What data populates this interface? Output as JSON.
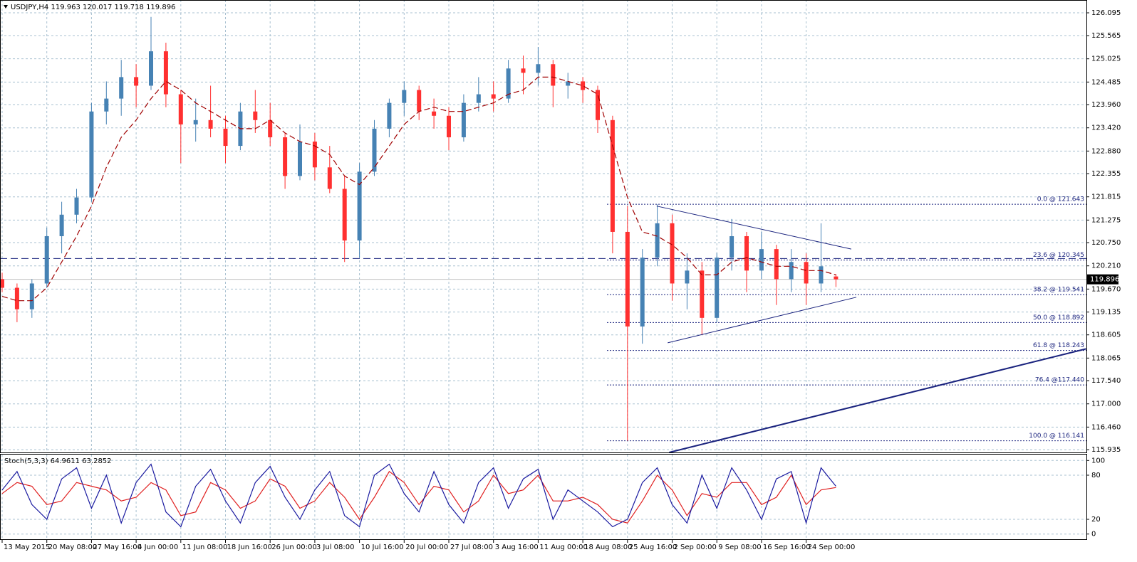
{
  "chart_data": {
    "type": "candlestick",
    "title": "USDJPY,H4  119.963 120.017 119.718 119.896",
    "categories": [
      "13 May 2015",
      null,
      null,
      "20 May 08:00",
      null,
      null,
      "27 May 16:00",
      null,
      null,
      "4 Jun 00:00",
      null,
      null,
      "11 Jun 08:00",
      null,
      null,
      "18 Jun 16:00",
      null,
      null,
      "26 Jun 00:00",
      null,
      null,
      "3 Jul 08:00",
      null,
      null,
      "10 Jul 16:00",
      null,
      null,
      "20 Jul 00:00",
      null,
      null,
      "27 Jul 08:00",
      null,
      null,
      "3 Aug 16:00",
      null,
      null,
      "11 Aug 00:00",
      null,
      null,
      "18 Aug 08:00",
      null,
      null,
      "25 Aug 16:00",
      null,
      null,
      "2 Sep 00:00",
      null,
      null,
      "9 Sep 08:00",
      null,
      null,
      "16 Sep 16:00",
      null,
      null,
      "24 Sep 00:00",
      null,
      null
    ],
    "ohlc": [
      [
        119.9,
        120.05,
        119.6,
        119.7
      ],
      [
        119.7,
        119.8,
        118.9,
        119.2
      ],
      [
        119.2,
        119.9,
        119.0,
        119.8
      ],
      [
        119.8,
        121.1,
        119.7,
        120.9
      ],
      [
        120.9,
        121.7,
        120.5,
        121.4
      ],
      [
        121.4,
        122.0,
        121.2,
        121.8
      ],
      [
        121.8,
        124.0,
        121.7,
        123.8
      ],
      [
        123.8,
        124.5,
        123.5,
        124.1
      ],
      [
        124.1,
        125.0,
        123.7,
        124.6
      ],
      [
        124.6,
        124.9,
        123.9,
        124.4
      ],
      [
        124.4,
        126.0,
        124.3,
        125.2
      ],
      [
        125.2,
        125.4,
        123.9,
        124.2
      ],
      [
        124.2,
        124.3,
        122.6,
        123.5
      ],
      [
        123.5,
        124.1,
        123.1,
        123.6
      ],
      [
        123.6,
        124.4,
        123.2,
        123.4
      ],
      [
        123.4,
        123.7,
        122.6,
        123.0
      ],
      [
        123.0,
        124.0,
        122.9,
        123.8
      ],
      [
        123.8,
        124.3,
        123.3,
        123.6
      ],
      [
        123.6,
        124.0,
        123.0,
        123.2
      ],
      [
        123.2,
        123.3,
        122.0,
        122.3
      ],
      [
        122.3,
        123.5,
        122.2,
        123.1
      ],
      [
        123.1,
        123.3,
        122.2,
        122.5
      ],
      [
        122.5,
        123.0,
        121.9,
        122.0
      ],
      [
        122.0,
        122.3,
        120.3,
        120.8
      ],
      [
        120.8,
        122.6,
        120.4,
        122.4
      ],
      [
        122.4,
        123.6,
        122.3,
        123.4
      ],
      [
        123.4,
        124.1,
        123.2,
        124.0
      ],
      [
        124.0,
        124.5,
        123.7,
        124.3
      ],
      [
        124.3,
        124.4,
        123.6,
        123.8
      ],
      [
        123.8,
        124.1,
        123.4,
        123.7
      ],
      [
        123.7,
        123.9,
        122.9,
        123.2
      ],
      [
        123.2,
        124.2,
        123.1,
        124.0
      ],
      [
        124.0,
        124.6,
        123.8,
        124.2
      ],
      [
        124.2,
        124.5,
        123.8,
        124.1
      ],
      [
        124.1,
        125.0,
        124.0,
        124.8
      ],
      [
        124.8,
        125.1,
        124.2,
        124.7
      ],
      [
        124.7,
        125.3,
        124.4,
        124.9
      ],
      [
        124.9,
        125.0,
        123.9,
        124.4
      ],
      [
        124.4,
        124.7,
        124.1,
        124.5
      ],
      [
        124.5,
        124.6,
        124.0,
        124.3
      ],
      [
        124.3,
        124.4,
        123.3,
        123.6
      ],
      [
        123.6,
        123.7,
        120.5,
        121.0
      ],
      [
        121.0,
        121.6,
        116.14,
        118.8
      ],
      [
        118.8,
        120.6,
        118.4,
        120.4
      ],
      [
        120.4,
        121.64,
        120.2,
        121.2
      ],
      [
        121.2,
        121.4,
        119.4,
        119.8
      ],
      [
        119.8,
        120.5,
        119.2,
        120.1
      ],
      [
        120.1,
        120.3,
        118.6,
        119.0
      ],
      [
        119.0,
        120.5,
        118.9,
        120.4
      ],
      [
        120.4,
        121.3,
        120.1,
        120.9
      ],
      [
        120.9,
        121.0,
        119.6,
        120.1
      ],
      [
        120.1,
        121.0,
        119.9,
        120.6
      ],
      [
        120.6,
        120.7,
        119.3,
        119.9
      ],
      [
        119.9,
        120.6,
        119.6,
        120.3
      ],
      [
        120.3,
        120.5,
        119.3,
        119.8
      ],
      [
        119.8,
        121.2,
        119.6,
        120.2
      ],
      [
        119.963,
        120.017,
        119.718,
        119.896
      ]
    ],
    "up_color": "#4682b4",
    "down_color": "#ff3030",
    "ma": {
      "color": "#a00000",
      "values": [
        119.5,
        119.4,
        119.4,
        119.7,
        120.3,
        120.9,
        121.6,
        122.5,
        123.2,
        123.6,
        124.1,
        124.5,
        124.3,
        124.0,
        123.8,
        123.6,
        123.4,
        123.4,
        123.6,
        123.3,
        123.1,
        123.0,
        122.8,
        122.3,
        122.1,
        122.5,
        123.0,
        123.5,
        123.8,
        123.9,
        123.8,
        123.8,
        123.9,
        124.0,
        124.2,
        124.3,
        124.6,
        124.6,
        124.5,
        124.4,
        124.2,
        123.0,
        121.8,
        121.0,
        120.9,
        120.7,
        120.4,
        120.0,
        120.0,
        120.3,
        120.4,
        120.3,
        120.2,
        120.2,
        120.1,
        120.1,
        120.0
      ]
    },
    "ylim": [
      115.87,
      126.36
    ],
    "yticks": [
      126.095,
      125.565,
      125.025,
      124.485,
      {
        "value": 123.96,
        "label": "123.960"
      },
      {
        "value": 123.42,
        "label": "123.420"
      },
      {
        "value": 122.88,
        "label": "122.880"
      },
      122.355,
      121.815,
      121.275,
      {
        "value": 120.75,
        "label": "120.750"
      },
      {
        "value": 120.21,
        "label": "120.210"
      },
      {
        "value": 119.67,
        "label": "119.670"
      },
      119.135,
      118.605,
      118.065,
      {
        "value": 117.54,
        "label": "117.540"
      },
      {
        "value": 117.0,
        "label": "117.000"
      },
      {
        "value": 116.46,
        "label": "116.460"
      },
      115.935
    ],
    "grid": true,
    "last_price": 119.896,
    "support_line": 120.38,
    "fib_levels": [
      {
        "value": 121.643,
        "label": "0.0 @ 121.643"
      },
      {
        "value": 120.345,
        "label": "23.6 @ 120.345"
      },
      {
        "value": 119.541,
        "label": "38.2 @ 119.541"
      },
      {
        "value": 118.892,
        "label": "50.0 @ 118.892"
      },
      {
        "value": 118.243,
        "label": "61.8 @ 118.243"
      },
      {
        "value": 117.44,
        "label": "76.4 @117.440"
      },
      {
        "value": 116.141,
        "label": "100.0 @ 116.141"
      }
    ],
    "trendlines": [
      {
        "x": [
          43.96,
          57.03
        ],
        "y": [
          121.6,
          120.6
        ],
        "width": 1
      },
      {
        "x": [
          44.7,
          57.37
        ],
        "y": [
          118.42,
          119.48
        ],
        "width": 1
      },
      {
        "x": [
          44.8,
          72.8
        ],
        "y": [
          115.87,
          118.28
        ],
        "width": 2
      }
    ],
    "trendline_color": "#1a237e",
    "stochastic": {
      "title": "Stoch(5,3,3) 64.9611 63.2852",
      "ylim": [
        -9,
        109
      ],
      "yticks": [
        100,
        80,
        20,
        0
      ],
      "main": {
        "color": "#1a1aa0",
        "values": [
          60,
          85,
          40,
          20,
          75,
          90,
          35,
          80,
          15,
          70,
          95,
          30,
          10,
          65,
          88,
          45,
          15,
          70,
          92,
          50,
          20,
          60,
          85,
          25,
          10,
          80,
          95,
          55,
          30,
          85,
          40,
          15,
          70,
          90,
          35,
          75,
          88,
          20,
          60,
          45,
          30,
          10,
          20,
          70,
          90,
          40,
          15,
          80,
          35,
          90,
          60,
          20,
          75,
          85,
          15,
          90,
          64.9611
        ]
      },
      "signal": {
        "color": "#e02020",
        "values": [
          55,
          70,
          65,
          40,
          45,
          70,
          65,
          60,
          45,
          50,
          70,
          60,
          25,
          30,
          70,
          60,
          35,
          45,
          75,
          65,
          35,
          45,
          70,
          50,
          20,
          50,
          85,
          70,
          40,
          65,
          60,
          30,
          45,
          80,
          55,
          60,
          80,
          45,
          45,
          50,
          40,
          20,
          15,
          45,
          80,
          60,
          25,
          55,
          50,
          70,
          70,
          40,
          50,
          80,
          40,
          60,
          63.2852
        ]
      }
    }
  }
}
